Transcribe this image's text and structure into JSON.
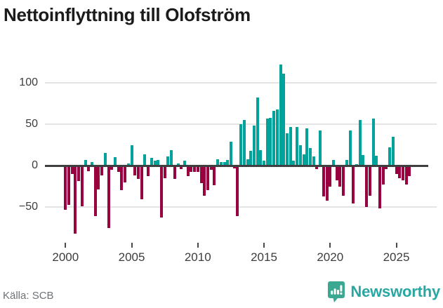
{
  "chart_data": {
    "type": "bar",
    "title": "Nettoinflyttning till Olofström",
    "xlabel": "",
    "ylabel": "",
    "x_unit": "quarter",
    "x_start": "2000Q1",
    "x_end": "2026Q1",
    "x_tick_labels": [
      "2000",
      "2005",
      "2010",
      "2015",
      "2020",
      "2025"
    ],
    "x_tick_years": [
      2000,
      2005,
      2010,
      2015,
      2020,
      2025
    ],
    "y_tick_labels": [
      "100",
      "50",
      "0",
      "−50"
    ],
    "y_ticks": [
      100,
      50,
      0,
      -50
    ],
    "y_gridlines": [
      100,
      50,
      -50
    ],
    "ylim": [
      -90,
      130
    ],
    "grid": "horizontal",
    "legend": "none",
    "positive_color": "#00a29a",
    "negative_color": "#98003f",
    "values": [
      -53,
      -47,
      -10,
      -82,
      -19,
      -49,
      7,
      -7,
      4,
      -61,
      -29,
      -12,
      15,
      -75,
      -5,
      10,
      -8,
      -30,
      -20,
      3,
      25,
      -12,
      -16,
      -41,
      14,
      -13,
      9,
      6,
      7,
      -63,
      -15,
      11,
      19,
      -16,
      3,
      -4,
      6,
      -13,
      -8,
      -8,
      -8,
      -21,
      -36,
      -30,
      -5,
      -24,
      8,
      4,
      4,
      7,
      29,
      -3,
      -61,
      50,
      55,
      8,
      18,
      48,
      82,
      19,
      6,
      57,
      58,
      66,
      68,
      122,
      111,
      39,
      47,
      6,
      47,
      25,
      14,
      45,
      21,
      11,
      -4,
      42,
      -37,
      -42,
      -25,
      7,
      -18,
      -25,
      -36,
      7,
      42,
      -46,
      2,
      55,
      13,
      -50,
      -36,
      57,
      12,
      -52,
      -23,
      -4,
      22,
      35,
      -10,
      -15,
      -18,
      -23,
      -13
    ]
  },
  "footer": {
    "source": "Källa: SCB",
    "brand": "Newsworthy"
  },
  "icons": {
    "brand_icon": "newsworthy-speech-bubble-bar-chart-icon",
    "brand_icon_color": "#3ba891"
  }
}
